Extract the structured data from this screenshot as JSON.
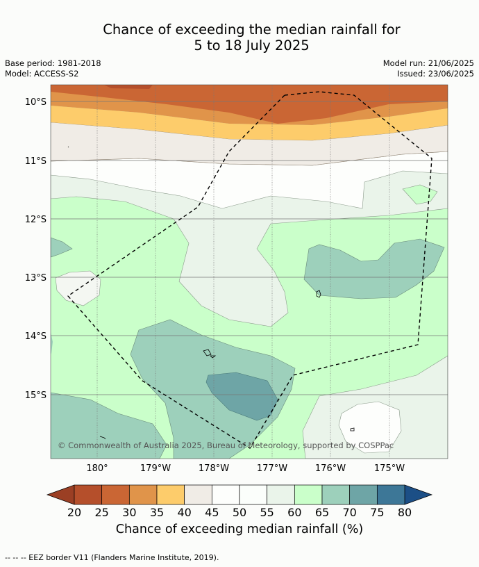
{
  "title": {
    "line1": "Chance of exceeding the median rainfall for",
    "line2": "5 to 18 July 2025"
  },
  "meta": {
    "base_period": "Base period: 1981-2018",
    "model": "Model: ACCESS-S2",
    "model_run": "Model run: 21/06/2025",
    "issued": "Issued: 23/06/2025"
  },
  "map": {
    "lat_labels": [
      "10°S",
      "11°S",
      "12°S",
      "13°S",
      "14°S",
      "15°S"
    ],
    "lon_labels": [
      "180°",
      "179°W",
      "178°W",
      "177°W",
      "176°W",
      "175°W"
    ],
    "copyright": "© Commonwealth of Australia 2025, Bureau of Meteorology, supported by COSPPac",
    "extent": {
      "lon_min": 179.2,
      "lon_max": 185.99,
      "lat_min": -16.1,
      "lat_max": -9.7
    }
  },
  "colorbar": {
    "ticks": [
      "20",
      "25",
      "30",
      "35",
      "40",
      "45",
      "50",
      "55",
      "60",
      "65",
      "70",
      "75",
      "80"
    ],
    "label": "Chance of exceeding median rainfall (%)",
    "colors": [
      "#9b3f24",
      "#b54f2b",
      "#ca6634",
      "#e0944a",
      "#fdcc6b",
      "#f0ece6",
      "#fdfefc",
      "#fbfefb",
      "#eaf4ea",
      "#caffca",
      "#9dd0bb",
      "#6ea5a6",
      "#3d7797",
      "#1c4f86"
    ]
  },
  "footnote": "--  --  -- EEZ border V11 (Flanders Marine Institute, 2019)."
}
